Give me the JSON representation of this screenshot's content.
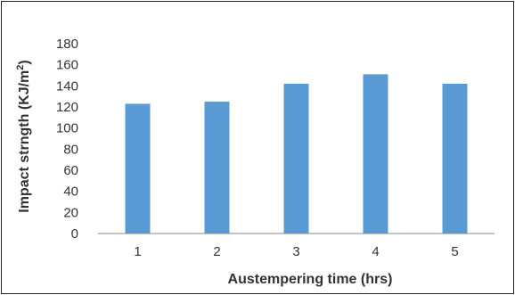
{
  "chart_data": {
    "type": "bar",
    "categories": [
      "1",
      "2",
      "3",
      "4",
      "5"
    ],
    "values": [
      123,
      125,
      142,
      151,
      142
    ],
    "xlabel": "Austempering time (hrs)",
    "ylabel": "Impact strngth (KJ/m",
    "ylabel_superscript": "2",
    "ylabel_suffix": ")",
    "ylim": [
      0,
      180
    ],
    "yticks": [
      0,
      20,
      40,
      60,
      80,
      100,
      120,
      140,
      160,
      180
    ],
    "grid": false,
    "legend": "none",
    "bar_color": "#5b9bd5"
  }
}
